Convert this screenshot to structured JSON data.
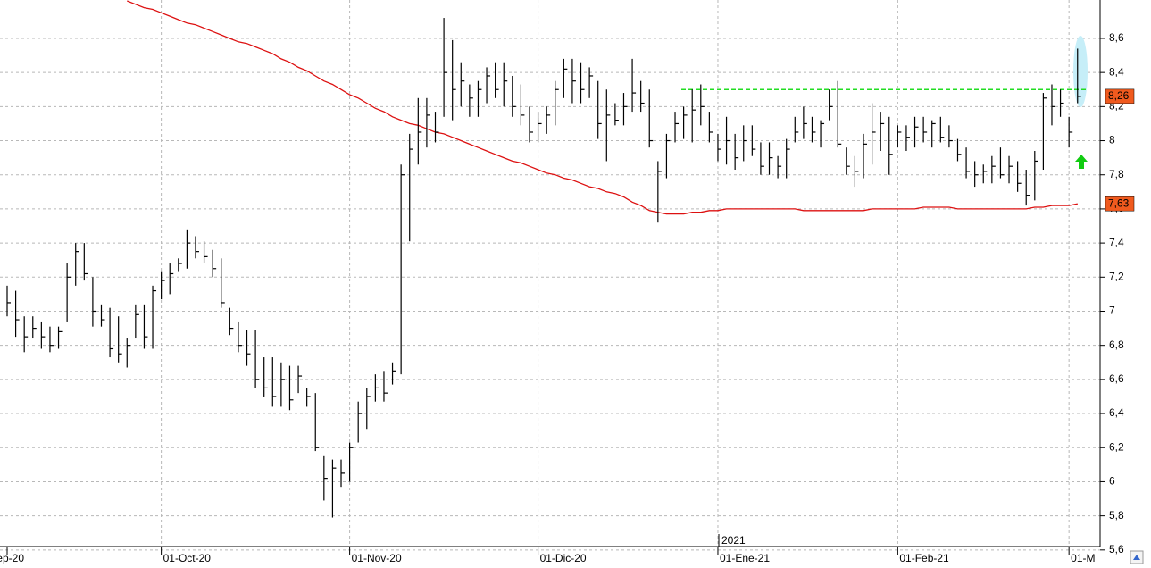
{
  "chart_data": {
    "type": "ohlc",
    "categories": [
      "ep-20",
      null,
      null,
      null,
      null,
      null,
      null,
      null,
      null,
      null,
      null,
      null,
      null,
      null,
      null,
      null,
      null,
      null,
      "01-Oct-20",
      null,
      null,
      null,
      null,
      null,
      null,
      null,
      null,
      null,
      null,
      null,
      null,
      null,
      null,
      null,
      null,
      null,
      null,
      null,
      null,
      null,
      "01-Nov-20",
      null,
      null,
      null,
      null,
      null,
      null,
      null,
      null,
      null,
      null,
      null,
      null,
      null,
      null,
      null,
      null,
      null,
      null,
      null,
      null,
      null,
      "01-Dic-20",
      null,
      null,
      null,
      null,
      null,
      null,
      null,
      null,
      null,
      null,
      null,
      null,
      null,
      null,
      null,
      null,
      null,
      null,
      null,
      null,
      "01-Ene-21",
      null,
      null,
      null,
      null,
      null,
      null,
      null,
      null,
      null,
      null,
      null,
      null,
      null,
      null,
      null,
      null,
      null,
      null,
      null,
      null,
      "01-Feb-21",
      null,
      null,
      null,
      null,
      null,
      null,
      null,
      null,
      null,
      null,
      null,
      null,
      null,
      null,
      null,
      null,
      null,
      null,
      null,
      "01-M",
      null
    ],
    "high": [
      7.15,
      7.12,
      6.97,
      6.97,
      6.94,
      6.91,
      6.91,
      7.28,
      7.4,
      7.4,
      7.2,
      7.04,
      7.02,
      6.97,
      6.84,
      7.04,
      7.04,
      7.15,
      7.23,
      7.28,
      7.31,
      7.48,
      7.44,
      7.41,
      7.36,
      7.31,
      7.02,
      6.94,
      6.89,
      6.89,
      6.73,
      6.73,
      6.7,
      6.68,
      6.68,
      6.55,
      6.52,
      6.15,
      6.13,
      6.13,
      6.23,
      6.47,
      6.55,
      6.63,
      6.65,
      6.7,
      7.86,
      8.04,
      8.25,
      8.25,
      8.17,
      8.72,
      8.59,
      8.46,
      8.33,
      8.35,
      8.43,
      8.46,
      8.46,
      8.38,
      8.33,
      8.2,
      8.17,
      8.2,
      8.35,
      8.48,
      8.48,
      8.46,
      8.43,
      8.35,
      8.3,
      8.22,
      8.28,
      8.48,
      8.35,
      8.3,
      7.88,
      8.04,
      8.17,
      8.2,
      8.3,
      8.33,
      8.17,
      8.04,
      8.14,
      8.04,
      8.09,
      8.09,
      7.99,
      7.99,
      7.91,
      8.01,
      8.14,
      8.2,
      8.14,
      8.12,
      8.3,
      8.35,
      7.96,
      7.91,
      8.04,
      8.22,
      8.17,
      8.14,
      8.09,
      8.09,
      8.14,
      8.14,
      8.12,
      8.14,
      8.09,
      8.01,
      7.96,
      7.88,
      7.86,
      7.91,
      7.96,
      7.91,
      7.88,
      7.83,
      7.94,
      8.28,
      8.33,
      8.3,
      8.14,
      8.54
    ],
    "low": [
      6.97,
      6.85,
      6.76,
      6.84,
      6.78,
      6.76,
      6.78,
      6.94,
      7.15,
      7.18,
      6.91,
      6.91,
      6.73,
      6.7,
      6.67,
      6.84,
      6.78,
      6.78,
      7.07,
      7.1,
      7.23,
      7.25,
      7.31,
      7.28,
      7.2,
      7.02,
      6.86,
      6.76,
      6.68,
      6.55,
      6.5,
      6.44,
      6.44,
      6.42,
      6.52,
      6.44,
      6.18,
      5.89,
      5.79,
      5.97,
      6.0,
      6.23,
      6.31,
      6.47,
      6.47,
      6.57,
      6.63,
      7.41,
      7.86,
      7.96,
      7.99,
      8.14,
      8.12,
      8.2,
      8.14,
      8.14,
      8.22,
      8.25,
      8.2,
      8.14,
      8.09,
      7.99,
      7.99,
      8.04,
      8.09,
      8.25,
      8.22,
      8.22,
      8.25,
      8.01,
      7.88,
      8.09,
      8.09,
      8.17,
      8.17,
      7.96,
      7.52,
      7.78,
      7.99,
      8.01,
      7.99,
      8.09,
      7.99,
      7.88,
      7.86,
      7.83,
      7.88,
      7.91,
      7.8,
      7.8,
      7.78,
      7.78,
      7.99,
      8.01,
      7.99,
      7.96,
      8.12,
      7.96,
      7.8,
      7.73,
      7.78,
      7.86,
      7.94,
      7.8,
      7.96,
      7.94,
      7.96,
      7.99,
      7.96,
      7.99,
      7.96,
      7.88,
      7.78,
      7.73,
      7.75,
      7.75,
      7.78,
      7.75,
      7.7,
      7.62,
      7.65,
      7.83,
      8.09,
      8.14,
      7.96,
      8.22
    ],
    "close": [
      7.05,
      6.95,
      6.85,
      6.9,
      6.85,
      6.8,
      6.88,
      7.2,
      7.35,
      7.22,
      7.0,
      6.95,
      6.78,
      6.75,
      6.8,
      6.98,
      6.85,
      7.12,
      7.18,
      7.22,
      7.28,
      7.4,
      7.35,
      7.32,
      7.25,
      7.05,
      6.9,
      6.8,
      6.75,
      6.6,
      6.55,
      6.5,
      6.6,
      6.48,
      6.62,
      6.5,
      6.2,
      6.02,
      6.08,
      6.05,
      6.2,
      6.4,
      6.5,
      6.55,
      6.52,
      6.65,
      7.8,
      7.95,
      8.05,
      8.15,
      8.05,
      8.4,
      8.3,
      8.35,
      8.25,
      8.3,
      8.38,
      8.3,
      8.35,
      8.2,
      8.15,
      8.05,
      8.1,
      8.15,
      8.3,
      8.42,
      8.35,
      8.3,
      8.38,
      8.1,
      8.15,
      8.12,
      8.2,
      8.28,
      8.22,
      8.0,
      7.82,
      8.0,
      8.1,
      8.15,
      8.18,
      8.2,
      8.05,
      7.95,
      8.0,
      7.9,
      8.0,
      7.95,
      7.85,
      7.9,
      7.85,
      7.95,
      8.05,
      8.1,
      8.05,
      8.1,
      8.2,
      7.98,
      7.85,
      7.82,
      7.98,
      8.05,
      8.1,
      7.92,
      8.05,
      8.02,
      8.08,
      8.05,
      8.1,
      8.02,
      8.0,
      7.92,
      7.82,
      7.8,
      7.82,
      7.85,
      7.8,
      7.85,
      7.75,
      7.68,
      7.88,
      8.25,
      8.2,
      8.22,
      8.05,
      8.26
    ],
    "color": "#000000",
    "ma": {
      "color": "#dd1111",
      "values": [
        null,
        null,
        null,
        null,
        null,
        null,
        null,
        null,
        null,
        null,
        null,
        null,
        null,
        null,
        8.82,
        8.8,
        8.78,
        8.77,
        8.75,
        8.73,
        8.71,
        8.69,
        8.68,
        8.66,
        8.64,
        8.62,
        8.6,
        8.58,
        8.57,
        8.55,
        8.53,
        8.51,
        8.48,
        8.46,
        8.43,
        8.41,
        8.38,
        8.35,
        8.33,
        8.3,
        8.27,
        8.25,
        8.22,
        8.19,
        8.17,
        8.14,
        8.12,
        8.1,
        8.09,
        8.07,
        8.05,
        8.04,
        8.02,
        8.0,
        7.98,
        7.96,
        7.94,
        7.92,
        7.9,
        7.88,
        7.87,
        7.85,
        7.83,
        7.81,
        7.8,
        7.78,
        7.77,
        7.75,
        7.73,
        7.72,
        7.7,
        7.69,
        7.67,
        7.64,
        7.62,
        7.59,
        7.58,
        7.57,
        7.57,
        7.57,
        7.58,
        7.58,
        7.59,
        7.59,
        7.6,
        7.6,
        7.6,
        7.6,
        7.6,
        7.6,
        7.6,
        7.6,
        7.6,
        7.59,
        7.59,
        7.59,
        7.59,
        7.59,
        7.59,
        7.59,
        7.59,
        7.6,
        7.6,
        7.6,
        7.6,
        7.6,
        7.6,
        7.61,
        7.61,
        7.61,
        7.61,
        7.6,
        7.6,
        7.6,
        7.6,
        7.6,
        7.6,
        7.6,
        7.6,
        7.6,
        7.61,
        7.61,
        7.62,
        7.62,
        7.62,
        7.63
      ]
    },
    "resistance": {
      "value": 8.3,
      "color": "#22dd22"
    },
    "last_labels": [
      {
        "value": 8.26,
        "label": "8,26",
        "color": "#f05a1e"
      },
      {
        "value": 7.63,
        "label": "7,63",
        "color": "#f05a1e"
      }
    ],
    "year_label": "2021",
    "ylim": [
      5.62,
      8.825
    ],
    "yticks": [
      {
        "value": 5.6,
        "label": "5,6"
      },
      {
        "value": 5.8,
        "label": "5,8"
      },
      {
        "value": 6,
        "label": "6"
      },
      {
        "value": 6.2,
        "label": "6,2"
      },
      {
        "value": 6.4,
        "label": "6,4"
      },
      {
        "value": 6.6,
        "label": "6,6"
      },
      {
        "value": 6.8,
        "label": "6,8"
      },
      {
        "value": 7,
        "label": "7"
      },
      {
        "value": 7.2,
        "label": "7,2"
      },
      {
        "value": 7.4,
        "label": "7,4"
      },
      {
        "value": 7.6,
        "label": "7,6"
      },
      {
        "value": 7.8,
        "label": "7,8"
      },
      {
        "value": 8,
        "label": "8"
      },
      {
        "value": 8.2,
        "label": "8,2"
      },
      {
        "value": 8.4,
        "label": "8,4"
      },
      {
        "value": 8.6,
        "label": "8,6"
      }
    ],
    "grid": true
  }
}
